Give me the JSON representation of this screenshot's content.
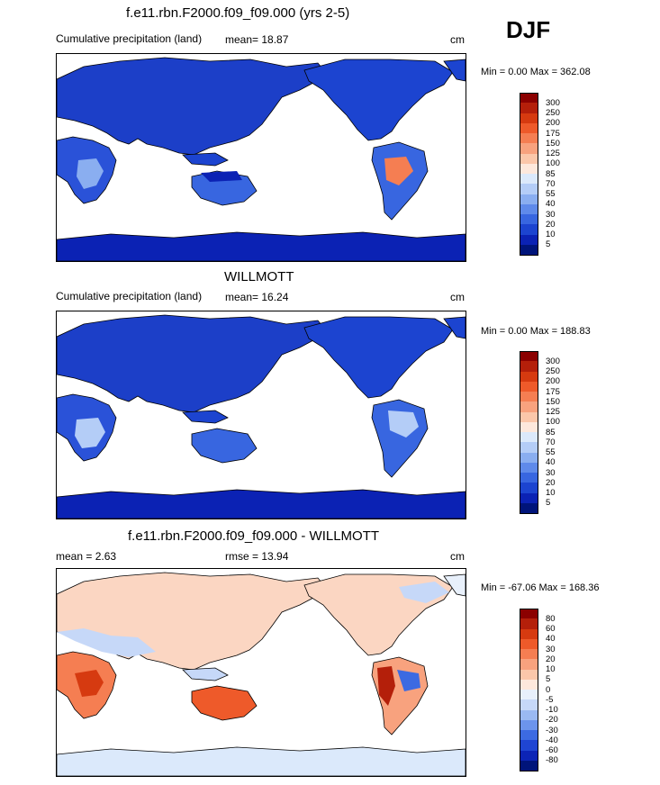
{
  "season": "DJF",
  "units_label": "cm",
  "panels": [
    {
      "title": "f.e11.rbn.F2000.f09_f09.000 (yrs 2-5)",
      "left_label": "Cumulative precipitation (land)",
      "mid_label": "mean=  18.87",
      "right_label": "cm",
      "minmax": "Min =   0.00 Max = 362.08",
      "colorbar": {
        "labels": [
          "300",
          "250",
          "200",
          "175",
          "150",
          "125",
          "100",
          "85",
          "70",
          "55",
          "40",
          "30",
          "20",
          "10",
          "5"
        ],
        "colors": [
          "#8b0000",
          "#b41f0a",
          "#d63a10",
          "#ee5a2a",
          "#f57e52",
          "#f8a27e",
          "#fbc7aa",
          "#fde8dc",
          "#dbe9fb",
          "#b4cdf7",
          "#8aaef0",
          "#5f8aea",
          "#3866e0",
          "#1c44d0",
          "#0b22b4",
          "#00147a"
        ]
      }
    },
    {
      "title": "WILLMOTT",
      "left_label": "Cumulative precipitation (land)",
      "mid_label": "mean=  16.24",
      "right_label": "cm",
      "minmax": "Min =   0.00 Max = 188.83",
      "colorbar": {
        "labels": [
          "300",
          "250",
          "200",
          "175",
          "150",
          "125",
          "100",
          "85",
          "70",
          "55",
          "40",
          "30",
          "20",
          "10",
          "5"
        ],
        "colors": [
          "#8b0000",
          "#b41f0a",
          "#d63a10",
          "#ee5a2a",
          "#f57e52",
          "#f8a27e",
          "#fbc7aa",
          "#fde8dc",
          "#dbe9fb",
          "#b4cdf7",
          "#8aaef0",
          "#5f8aea",
          "#3866e0",
          "#1c44d0",
          "#0b22b4",
          "#00147a"
        ]
      }
    },
    {
      "title": "f.e11.rbn.F2000.f09_f09.000 - WILLMOTT",
      "left_label": "mean =   2.63",
      "mid_label": "rmse =  13.94",
      "right_label": "cm",
      "minmax": "Min = -67.06 Max = 168.36",
      "colorbar": {
        "labels": [
          "80",
          "60",
          "40",
          "30",
          "20",
          "10",
          "5",
          "0",
          "-5",
          "-10",
          "-20",
          "-30",
          "-40",
          "-60",
          "-80"
        ],
        "colors": [
          "#8b0000",
          "#b41f0a",
          "#d63a10",
          "#ee5a2a",
          "#f57e52",
          "#f8a27e",
          "#fbc7aa",
          "#fde8dc",
          "#e8f0fb",
          "#c6d8f8",
          "#9ab9f2",
          "#6c94ec",
          "#3c6ae2",
          "#1f45d2",
          "#0c24b6",
          "#00147a"
        ]
      }
    }
  ],
  "colors": {
    "panel1_land": "#1c44d0",
    "panel2_land": "#1c44d0",
    "panel3_land": "#fbd6c2",
    "ocean": "#ffffff",
    "coast": "#000000"
  }
}
